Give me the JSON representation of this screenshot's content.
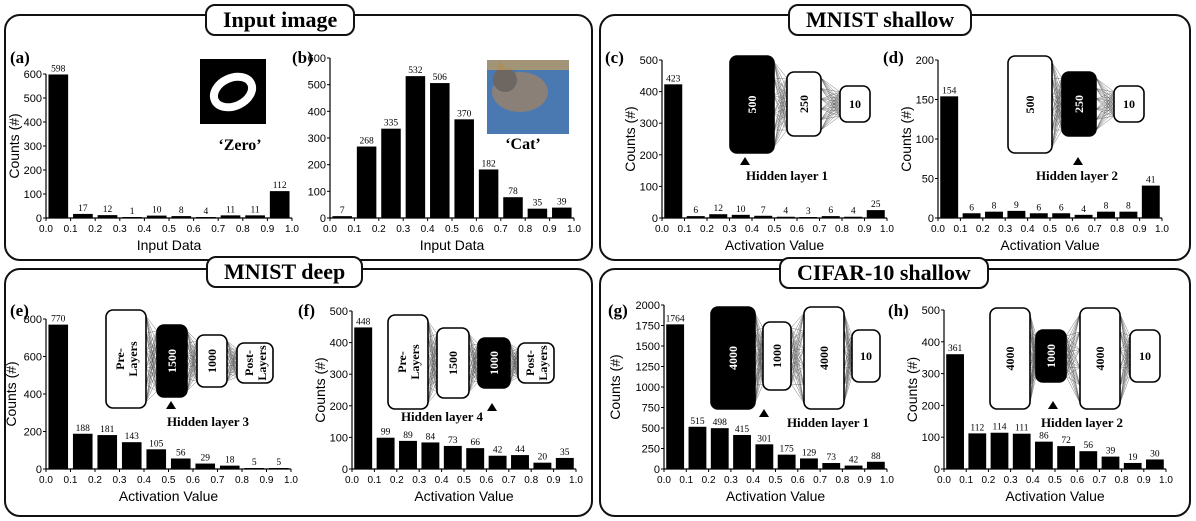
{
  "panel_titles": [
    "Input image",
    "MNIST shallow",
    "MNIST deep",
    "CIFAR-10 shallow"
  ],
  "colors": {
    "bar": "#000000",
    "background": "#ffffff",
    "cat_bg": "#4a78b0"
  },
  "images": {
    "zero_caption": "‘Zero’",
    "cat_caption": "‘Cat’"
  },
  "chart_data": [
    {
      "id": "a",
      "type": "bar",
      "letter": "(a)",
      "xlabel": "Input Data",
      "ylabel": "Counts (#)",
      "ylim": [
        0,
        600
      ],
      "yticks": [
        "0",
        "100",
        "200",
        "300",
        "400",
        "500",
        "600"
      ],
      "ytick_values": [
        0,
        100,
        200,
        300,
        400,
        500,
        600
      ],
      "xticks": [
        "0.0",
        "0.1",
        "0.2",
        "0.3",
        "0.4",
        "0.5",
        "0.6",
        "0.7",
        "0.8",
        "0.9",
        "1.0"
      ],
      "categories": [
        "0.0-0.1",
        "0.1-0.2",
        "0.2-0.3",
        "0.3-0.4",
        "0.4-0.5",
        "0.5-0.6",
        "0.6-0.7",
        "0.7-0.8",
        "0.8-0.9",
        "0.9-1.0"
      ],
      "values": [
        598,
        17,
        12,
        1,
        10,
        8,
        4,
        11,
        11,
        112
      ],
      "labels": [
        "598",
        "17",
        "12",
        "1",
        "10",
        "8",
        "4",
        "11",
        "11",
        "112"
      ]
    },
    {
      "id": "b",
      "type": "bar",
      "letter": "(b)",
      "xlabel": "Input Data",
      "ylabel": "",
      "ylim": [
        0,
        600
      ],
      "yticks": [
        "0",
        "100",
        "200",
        "300",
        "400",
        "500",
        "600"
      ],
      "ytick_values": [
        0,
        100,
        200,
        300,
        400,
        500,
        600
      ],
      "xticks": [
        "0.0",
        "0.1",
        "0.2",
        "0.3",
        "0.4",
        "0.5",
        "0.6",
        "0.7",
        "0.8",
        "0.9",
        "1.0"
      ],
      "values": [
        7,
        268,
        335,
        532,
        506,
        370,
        182,
        78,
        35,
        39
      ],
      "labels": [
        "7",
        "268",
        "335",
        "532",
        "506",
        "370",
        "182",
        "78",
        "35",
        "39"
      ]
    },
    {
      "id": "c",
      "type": "bar",
      "letter": "(c)",
      "xlabel": "Activation Value",
      "ylabel": "Counts (#)",
      "ylim": [
        0,
        500
      ],
      "yticks": [
        "0",
        "100",
        "200",
        "300",
        "400",
        "500"
      ],
      "ytick_values": [
        0,
        100,
        200,
        300,
        400,
        500
      ],
      "xticks": [
        "0.0",
        "0.1",
        "0.2",
        "0.3",
        "0.4",
        "0.5",
        "0.6",
        "0.7",
        "0.8",
        "0.9",
        "1.0"
      ],
      "values": [
        423,
        6,
        12,
        10,
        7,
        4,
        3,
        6,
        4,
        25
      ],
      "labels": [
        "423",
        "6",
        "12",
        "10",
        "7",
        "4",
        "3",
        "6",
        "4",
        "25"
      ],
      "network": {
        "layers": [
          "500",
          "250",
          "10"
        ],
        "highlight": 0,
        "caption": "Hidden layer 1"
      }
    },
    {
      "id": "d",
      "type": "bar",
      "letter": "(d)",
      "xlabel": "Activation Value",
      "ylabel": "Counts (#)",
      "ylim": [
        0,
        200
      ],
      "yticks": [
        "0",
        "50",
        "100",
        "150",
        "200"
      ],
      "ytick_values": [
        0,
        50,
        100,
        150,
        200
      ],
      "xticks": [
        "0.0",
        "0.1",
        "0.2",
        "0.3",
        "0.4",
        "0.5",
        "0.6",
        "0.7",
        "0.8",
        "0.9",
        "1.0"
      ],
      "values": [
        154,
        6,
        8,
        9,
        6,
        6,
        4,
        8,
        8,
        41
      ],
      "labels": [
        "154",
        "6",
        "8",
        "9",
        "6",
        "6",
        "4",
        "8",
        "8",
        "41"
      ],
      "network": {
        "layers": [
          "500",
          "250",
          "10"
        ],
        "highlight": 1,
        "caption": "Hidden layer 2"
      }
    },
    {
      "id": "e",
      "type": "bar",
      "letter": "(e)",
      "xlabel": "Activation Value",
      "ylabel": "Counts (#)",
      "ylim": [
        0,
        800
      ],
      "yticks": [
        "0",
        "200",
        "400",
        "600",
        "800"
      ],
      "ytick_values": [
        0,
        200,
        400,
        600,
        800
      ],
      "xticks": [
        "0.0",
        "0.1",
        "0.2",
        "0.3",
        "0.4",
        "0.5",
        "0.6",
        "0.7",
        "0.8",
        "0.9",
        "1.0"
      ],
      "values": [
        770,
        188,
        181,
        143,
        105,
        56,
        29,
        18,
        5,
        5
      ],
      "labels": [
        "770",
        "188",
        "181",
        "143",
        "105",
        "56",
        "29",
        "18",
        "5",
        "5"
      ],
      "network": {
        "layers": [
          "Pre -Layers",
          "1500",
          "1000",
          "Post-Layers"
        ],
        "highlight": 1,
        "caption": "Hidden layer 3"
      }
    },
    {
      "id": "f",
      "type": "bar",
      "letter": "(f)",
      "xlabel": "Activation Value",
      "ylabel": "Counts (#)",
      "ylim": [
        0,
        500
      ],
      "yticks": [
        "0",
        "100",
        "200",
        "300",
        "400",
        "500"
      ],
      "ytick_values": [
        0,
        100,
        200,
        300,
        400,
        500
      ],
      "xticks": [
        "0.0",
        "0.1",
        "0.2",
        "0.3",
        "0.4",
        "0.5",
        "0.6",
        "0.7",
        "0.8",
        "0.9",
        "1.0"
      ],
      "values": [
        448,
        99,
        89,
        84,
        73,
        66,
        42,
        44,
        20,
        35
      ],
      "labels": [
        "448",
        "99",
        "89",
        "84",
        "73",
        "66",
        "42",
        "44",
        "20",
        "35"
      ],
      "network": {
        "layers": [
          "Pre -Layers",
          "1500",
          "1000",
          "Post-Layers"
        ],
        "highlight": 2,
        "caption": "Hidden layer 4"
      }
    },
    {
      "id": "g",
      "type": "bar",
      "letter": "(g)",
      "xlabel": "Activation Value",
      "ylabel": "Counts (#)",
      "ylim": [
        0,
        2000
      ],
      "yticks": [
        "0",
        "250",
        "500",
        "750",
        "1000",
        "1250",
        "1500",
        "1750",
        "2000"
      ],
      "ytick_values": [
        0,
        250,
        500,
        750,
        1000,
        1250,
        1500,
        1750,
        2000
      ],
      "xticks": [
        "0.0",
        "0.1",
        "0.2",
        "0.3",
        "0.4",
        "0.5",
        "0.6",
        "0.7",
        "0.8",
        "0.9",
        "1.0"
      ],
      "values": [
        1764,
        515,
        498,
        415,
        301,
        175,
        129,
        73,
        42,
        88
      ],
      "labels": [
        "1764",
        "515",
        "498",
        "415",
        "301",
        "175",
        "129",
        "73",
        "42",
        "88"
      ],
      "network": {
        "layers": [
          "4000",
          "1000",
          "4000",
          "10"
        ],
        "highlight": 0,
        "caption": "Hidden layer 1"
      }
    },
    {
      "id": "h",
      "type": "bar",
      "letter": "(h)",
      "xlabel": "Activation Value",
      "ylabel": "Counts (#)",
      "ylim": [
        0,
        500
      ],
      "yticks": [
        "0",
        "100",
        "200",
        "300",
        "400",
        "500"
      ],
      "ytick_values": [
        0,
        100,
        200,
        300,
        400,
        500
      ],
      "xticks": [
        "0.0",
        "0.1",
        "0.2",
        "0.3",
        "0.4",
        "0.5",
        "0.6",
        "0.7",
        "0.8",
        "0.9",
        "1.0"
      ],
      "values": [
        361,
        112,
        114,
        111,
        86,
        72,
        56,
        39,
        19,
        30
      ],
      "labels": [
        "361",
        "112",
        "114",
        "111",
        "86",
        "72",
        "56",
        "39",
        "19",
        "30"
      ],
      "network": {
        "layers": [
          "4000",
          "1000",
          "4000",
          "10"
        ],
        "highlight": 1,
        "caption": "Hidden layer 2"
      }
    }
  ]
}
